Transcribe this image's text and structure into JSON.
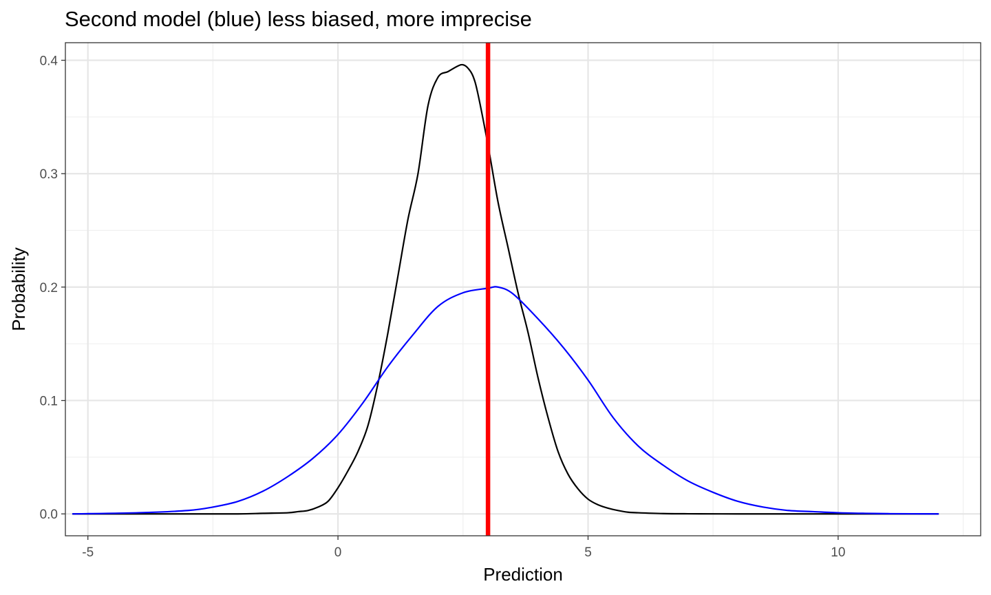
{
  "chart_data": {
    "type": "line",
    "title": "Second model (blue) less biased, more imprecise",
    "xlabel": "Prediction",
    "ylabel": "Probability",
    "xlim": [
      -5.45,
      12.85
    ],
    "ylim": [
      -0.0193,
      0.4155
    ],
    "x_ticks": [
      -5,
      0,
      5,
      10
    ],
    "x_tick_labels": [
      "-5",
      "0",
      "5",
      "10"
    ],
    "y_ticks": [
      0.0,
      0.1,
      0.2,
      0.3,
      0.4
    ],
    "y_tick_labels": [
      "0.0",
      "0.1",
      "0.2",
      "0.3",
      "0.4"
    ],
    "grid": true,
    "legend": "none",
    "vline": {
      "x": 3,
      "color": "#ff0000"
    },
    "series": [
      {
        "color": "#000000",
        "x": [
          -5.3,
          -4.0,
          -3.0,
          -2.0,
          -1.5,
          -1.0,
          -0.8,
          -0.6,
          -0.4,
          -0.2,
          0.0,
          0.2,
          0.4,
          0.6,
          0.8,
          1.0,
          1.2,
          1.4,
          1.6,
          1.8,
          2.0,
          2.2,
          2.4,
          2.5,
          2.6,
          2.7,
          2.8,
          3.0,
          3.2,
          3.4,
          3.6,
          3.8,
          4.0,
          4.2,
          4.4,
          4.6,
          4.8,
          5.0,
          5.2,
          5.4,
          5.6,
          5.8,
          6.0,
          6.5,
          7.0,
          8.0,
          9.0,
          10.0,
          11.0,
          12.0
        ],
        "values": [
          0.0,
          0.0,
          0.0,
          0.0,
          0.0005,
          0.001,
          0.002,
          0.003,
          0.006,
          0.011,
          0.023,
          0.038,
          0.055,
          0.078,
          0.115,
          0.16,
          0.21,
          0.26,
          0.3,
          0.36,
          0.385,
          0.39,
          0.395,
          0.396,
          0.393,
          0.386,
          0.37,
          0.325,
          0.275,
          0.235,
          0.195,
          0.16,
          0.12,
          0.085,
          0.055,
          0.035,
          0.022,
          0.013,
          0.008,
          0.005,
          0.003,
          0.0015,
          0.001,
          0.0003,
          0.0001,
          0.0,
          0.0,
          0.0,
          0.0,
          0.0
        ]
      },
      {
        "color": "#0000ff",
        "x": [
          -5.3,
          -4.0,
          -3.0,
          -2.5,
          -2.0,
          -1.5,
          -1.0,
          -0.5,
          0.0,
          0.5,
          1.0,
          1.5,
          2.0,
          2.5,
          3.0,
          3.2,
          3.5,
          4.0,
          4.5,
          5.0,
          5.5,
          6.0,
          6.5,
          7.0,
          7.5,
          8.0,
          8.5,
          9.0,
          9.5,
          10.0,
          10.5,
          11.0,
          11.5,
          12.0
        ],
        "values": [
          0.0,
          0.001,
          0.003,
          0.006,
          0.011,
          0.02,
          0.033,
          0.049,
          0.07,
          0.098,
          0.13,
          0.158,
          0.183,
          0.195,
          0.199,
          0.2,
          0.194,
          0.172,
          0.147,
          0.118,
          0.085,
          0.06,
          0.043,
          0.029,
          0.019,
          0.011,
          0.006,
          0.003,
          0.002,
          0.001,
          0.0005,
          0.0002,
          0.0001,
          0.0
        ]
      }
    ]
  }
}
